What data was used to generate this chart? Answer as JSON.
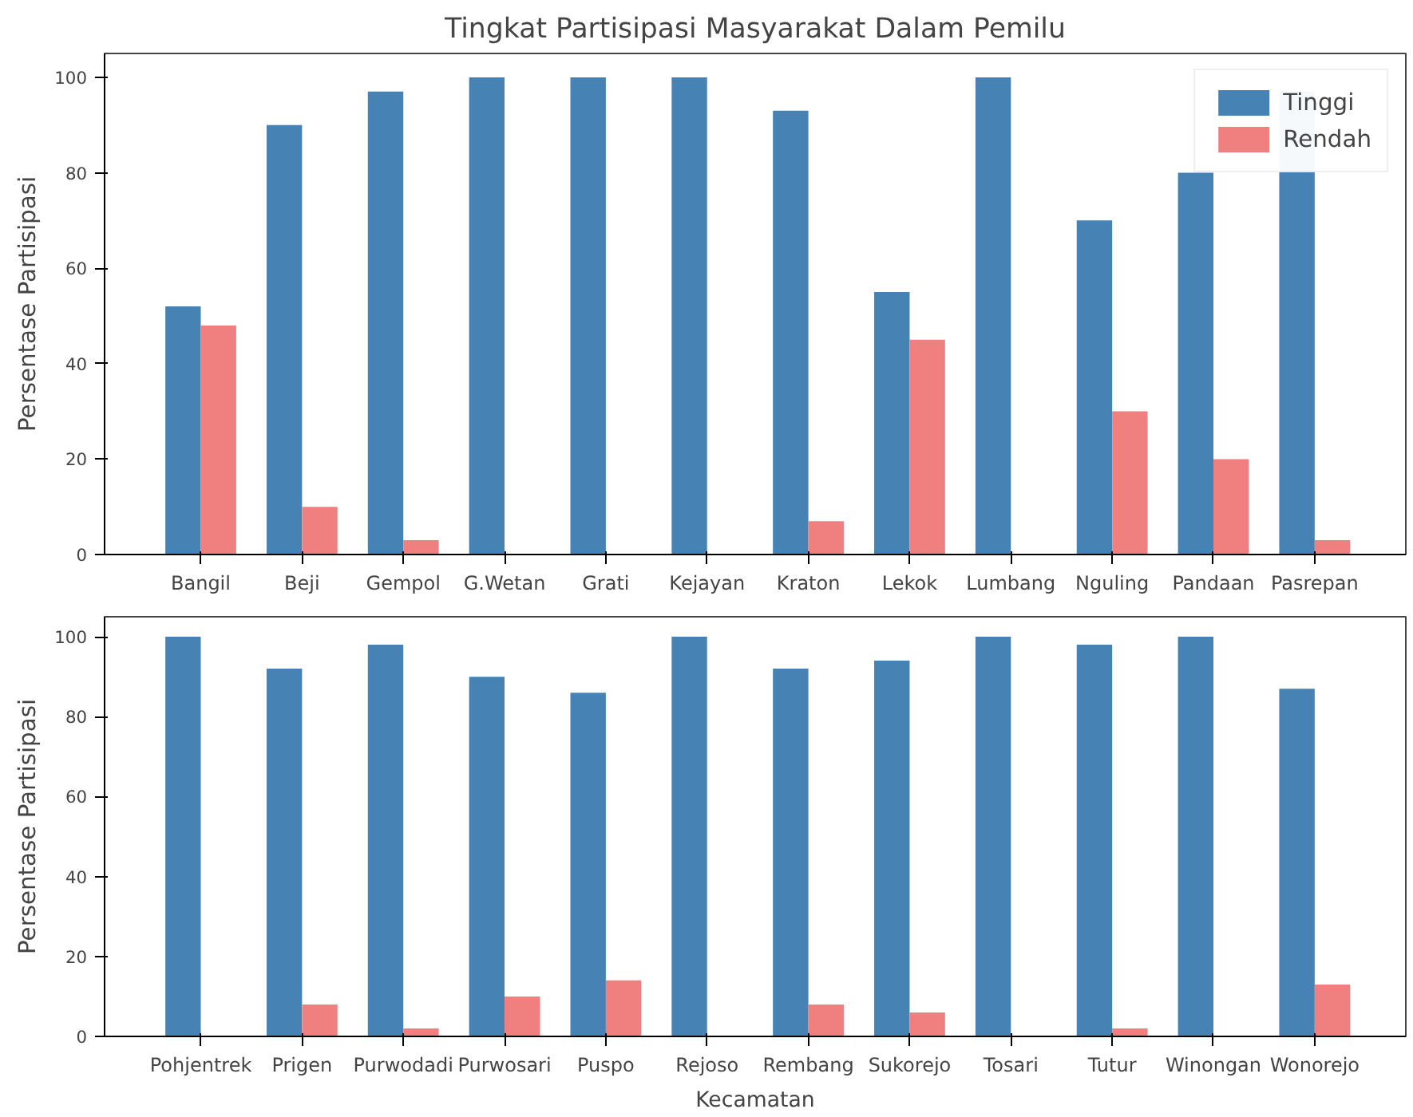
{
  "chart_data": [
    {
      "type": "bar",
      "title": "Tingkat Partisipasi Masyarakat Dalam Pemilu",
      "ylabel": "Persentase Partisipasi",
      "categories": [
        "Bangil",
        "Beji",
        "Gempol",
        "G.Wetan",
        "Grati",
        "Kejayan",
        "Kraton",
        "Lekok",
        "Lumbang",
        "Nguling",
        "Pandaan",
        "Pasrepan"
      ],
      "series": [
        {
          "name": "Tinggi",
          "color": "#4682b4",
          "values": [
            52,
            90,
            97,
            100,
            100,
            100,
            93,
            55,
            100,
            70,
            80,
            97
          ]
        },
        {
          "name": "Rendah",
          "color": "#f08080",
          "values": [
            48,
            10,
            3,
            0,
            0,
            0,
            7,
            45,
            0,
            30,
            20,
            3
          ]
        }
      ],
      "ylim": [
        0,
        105
      ],
      "yticks": [
        0,
        20,
        40,
        60,
        80,
        100
      ],
      "grid": false,
      "legend": "top right"
    },
    {
      "type": "bar",
      "xlabel": "Kecamatan",
      "ylabel": "Persentase Partisipasi",
      "categories": [
        "Pohjentrek",
        "Prigen",
        "Purwodadi",
        "Purwosari",
        "Puspo",
        "Rejoso",
        "Rembang",
        "Sukorejo",
        "Tosari",
        "Tutur",
        "Winongan",
        "Wonorejo"
      ],
      "series": [
        {
          "color": "#4682b4",
          "values": [
            100,
            92,
            98,
            90,
            86,
            100,
            92,
            94,
            100,
            98,
            100,
            87
          ]
        },
        {
          "color": "#f08080",
          "values": [
            0,
            8,
            2,
            10,
            14,
            0,
            8,
            6,
            0,
            2,
            0,
            13
          ]
        }
      ],
      "ylim": [
        0,
        105
      ],
      "yticks": [
        0,
        20,
        40,
        60,
        80,
        100
      ],
      "grid": false
    }
  ]
}
